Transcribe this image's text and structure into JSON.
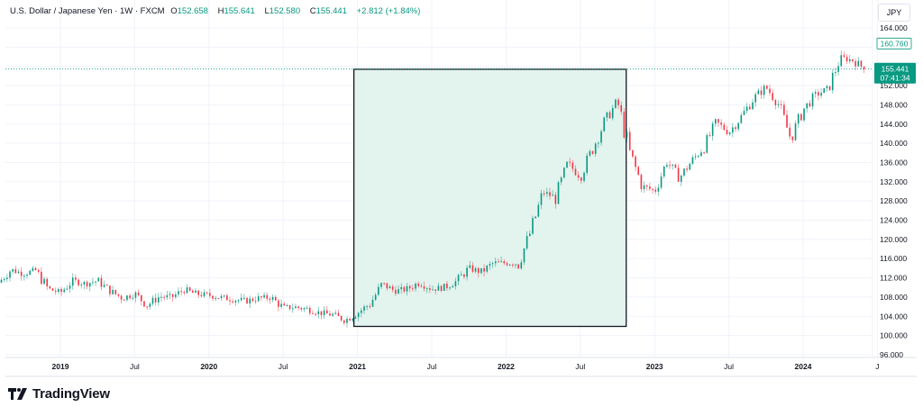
{
  "legend": {
    "symbol": "U.S. Dollar / Japanese Yen · 1W · FXCM",
    "o_label": "O",
    "o": "152.658",
    "h_label": "H",
    "h": "155.641",
    "l_label": "L",
    "l": "152.580",
    "c_label": "C",
    "c": "155.441",
    "change": "+2.812 (+1.84%)"
  },
  "currency_button": "JPY",
  "brand": "TradingView",
  "colors": {
    "up": "#089981",
    "down": "#f23645",
    "highlight_fill": "#e3f3ee",
    "grid": "#f0f3fa"
  },
  "chart_data": {
    "type": "candlestick",
    "interval": "1W",
    "y_ticks": [
      164,
      152,
      148,
      144,
      140,
      136,
      132,
      128,
      124,
      120,
      116,
      112,
      108,
      104,
      100,
      96
    ],
    "ylim": [
      96,
      164
    ],
    "x_ticks": [
      {
        "label": "2019",
        "date": 2019.0
      },
      {
        "label": "Jul",
        "date": 2019.5
      },
      {
        "label": "2020",
        "date": 2020.0
      },
      {
        "label": "Jul",
        "date": 2020.5
      },
      {
        "label": "2021",
        "date": 2021.0
      },
      {
        "label": "Jul",
        "date": 2021.5
      },
      {
        "label": "2022",
        "date": 2022.0
      },
      {
        "label": "Jul",
        "date": 2022.5
      },
      {
        "label": "2023",
        "date": 2023.0
      },
      {
        "label": "Jul",
        "date": 2023.5
      },
      {
        "label": "2024",
        "date": 2024.0
      },
      {
        "label": "J",
        "date": 2024.5
      }
    ],
    "monthly_closes": {
      "start": "2018-08",
      "values": [
        111.0,
        113.7,
        112.9,
        113.5,
        109.7,
        108.9,
        111.4,
        110.8,
        111.4,
        109.3,
        107.8,
        108.7,
        106.3,
        108.1,
        108.0,
        109.5,
        108.6,
        108.4,
        107.9,
        107.5,
        107.2,
        107.8,
        107.9,
        105.8,
        105.9,
        105.5,
        104.7,
        104.3,
        103.2,
        104.7,
        106.6,
        110.7,
        109.3,
        109.6,
        111.1,
        109.7,
        110.0,
        111.3,
        114.0,
        113.2,
        115.1,
        115.1,
        115.0,
        121.7,
        129.8,
        128.7,
        135.7,
        133.2,
        138.9,
        144.7,
        148.7,
        138.0,
        131.1,
        130.1,
        136.2,
        132.8,
        136.3,
        139.3,
        144.3,
        142.3,
        145.5,
        149.4,
        151.7,
        148.2,
        141.0,
        147.0,
        150.0,
        151.3,
        157.8,
        157.3,
        155.441
      ]
    },
    "current_price": "155.441",
    "countdown": "07:41:34",
    "high_marker": "160.760",
    "highlight_range": {
      "from": "2021-01",
      "to": "2022-10",
      "price_low": 101.9,
      "price_high": 155.4
    }
  }
}
